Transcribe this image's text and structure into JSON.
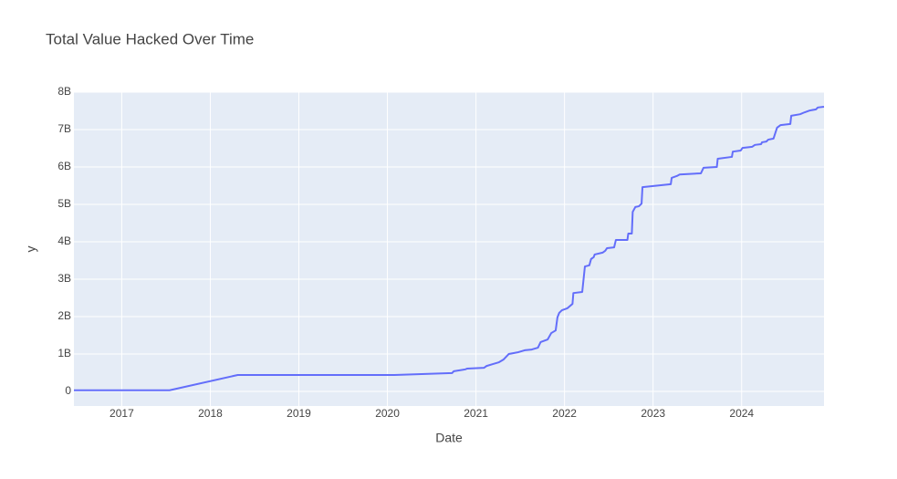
{
  "chart_data": {
    "type": "line",
    "title": "Total Value Hacked Over Time",
    "x_label": "Date",
    "y_label": "y",
    "xlim": [
      2016.46,
      2024.93
    ],
    "xticks": [
      2017,
      2018,
      2019,
      2020,
      2021,
      2022,
      2023,
      2024
    ],
    "ylim": [
      -390000000.0,
      8000000000.0
    ],
    "yticks": [
      0,
      {
        "value": 1000000000.0,
        "label": "1B"
      },
      {
        "value": 2000000000.0,
        "label": "2B"
      },
      {
        "value": 3000000000.0,
        "label": "3B"
      },
      {
        "value": 4000000000.0,
        "label": "4B"
      },
      {
        "value": 5000000000.0,
        "label": "5B"
      },
      {
        "value": 6000000000.0,
        "label": "6B"
      },
      {
        "value": 7000000000.0,
        "label": "7B"
      },
      {
        "value": 8000000000.0,
        "label": "8B"
      }
    ],
    "grid": true,
    "x": [
      2016.46,
      2017.54,
      2018.31,
      2020.08,
      2020.73,
      2020.75,
      2020.88,
      2020.9,
      2021.09,
      2021.12,
      2021.19,
      2021.26,
      2021.31,
      2021.37,
      2021.48,
      2021.55,
      2021.63,
      2021.7,
      2021.73,
      2021.81,
      2021.85,
      2021.9,
      2021.92,
      2021.94,
      2021.97,
      2022.03,
      2022.09,
      2022.1,
      2022.2,
      2022.23,
      2022.28,
      2022.3,
      2022.33,
      2022.34,
      2022.43,
      2022.46,
      2022.48,
      2022.56,
      2022.58,
      2022.71,
      2022.72,
      2022.76,
      2022.77,
      2022.8,
      2022.84,
      2022.87,
      2022.88,
      2023.2,
      2023.21,
      2023.27,
      2023.3,
      2023.54,
      2023.57,
      2023.72,
      2023.73,
      2023.89,
      2023.9,
      2023.99,
      2024.01,
      2024.12,
      2024.15,
      2024.22,
      2024.23,
      2024.28,
      2024.3,
      2024.36,
      2024.4,
      2024.44,
      2024.55,
      2024.56,
      2024.66,
      2024.71,
      2024.77,
      2024.84,
      2024.86,
      2024.93
    ],
    "series": [
      {
        "name": "y",
        "color": "#636efa",
        "values": [
          30000000.0,
          30000000.0,
          440000000.0,
          440000000.0,
          490000000.0,
          540000000.0,
          590000000.0,
          610000000.0,
          630000000.0,
          680000000.0,
          730000000.0,
          780000000.0,
          850000000.0,
          1000000000.0,
          1050000000.0,
          1100000000.0,
          1120000000.0,
          1170000000.0,
          1320000000.0,
          1390000000.0,
          1560000000.0,
          1630000000.0,
          1980000000.0,
          2100000000.0,
          2170000000.0,
          2220000000.0,
          2340000000.0,
          2630000000.0,
          2660000000.0,
          3340000000.0,
          3370000000.0,
          3540000000.0,
          3590000000.0,
          3660000000.0,
          3710000000.0,
          3760000000.0,
          3830000000.0,
          3850000000.0,
          4050000000.0,
          4050000000.0,
          4220000000.0,
          4220000000.0,
          4800000000.0,
          4930000000.0,
          4950000000.0,
          5020000000.0,
          5460000000.0,
          5540000000.0,
          5710000000.0,
          5760000000.0,
          5800000000.0,
          5830000000.0,
          5980000000.0,
          6000000000.0,
          6220000000.0,
          6270000000.0,
          6410000000.0,
          6440000000.0,
          6510000000.0,
          6540000000.0,
          6590000000.0,
          6610000000.0,
          6660000000.0,
          6680000000.0,
          6730000000.0,
          6760000000.0,
          7050000000.0,
          7120000000.0,
          7150000000.0,
          7370000000.0,
          7410000000.0,
          7460000000.0,
          7510000000.0,
          7540000000.0,
          7590000000.0,
          7610000000.0
        ]
      }
    ]
  }
}
